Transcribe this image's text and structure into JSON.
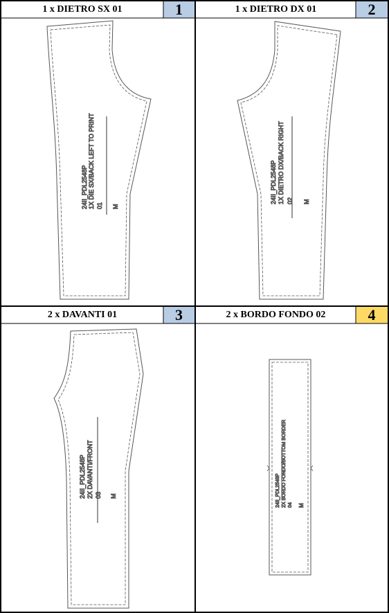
{
  "panels": [
    {
      "title": "1 x DIETRO SX 01",
      "number": "1",
      "number_color": "#b8cce4",
      "text_lines": [
        "24II_PDL2548P",
        "1X DIE SX/BACK LEFT TO PRINT",
        "01"
      ],
      "size": "M"
    },
    {
      "title": "1 x DIETRO DX 01",
      "number": "2",
      "number_color": "#b8cce4",
      "text_lines": [
        "24II_PDL2548P",
        "1X DIETRO DX/BACK RIGHT",
        "02"
      ],
      "size": "M"
    },
    {
      "title": "2 x DAVANTI 01",
      "number": "3",
      "number_color": "#b8cce4",
      "text_lines": [
        "24II_PDL2548P",
        "2X DAVANTI/FRONT",
        "03"
      ],
      "size": "M"
    },
    {
      "title": "2 x BORDO FONDO 02",
      "number": "4",
      "number_color": "#ffd966",
      "text_lines": [
        "24II_PDL2548P",
        "2X BORDO FONDO/BOTTOM BORDER",
        "04"
      ],
      "size": "M"
    }
  ]
}
